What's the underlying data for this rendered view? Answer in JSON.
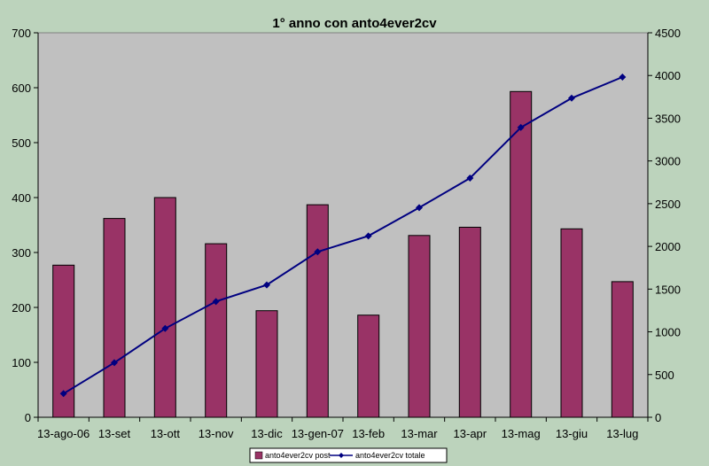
{
  "chart_data": {
    "type": "bar",
    "title": "1° anno con anto4ever2cv",
    "xlabel": "",
    "ylabel": "",
    "categories": [
      "13-ago-06",
      "13-set",
      "13-ott",
      "13-nov",
      "13-dic",
      "13-gen-07",
      "13-feb",
      "13-mar",
      "13-apr",
      "13-mag",
      "13-giu",
      "13-lug"
    ],
    "series": [
      {
        "name": "anto4ever2cv post",
        "type": "bar",
        "axis": "left",
        "color": "#993366",
        "values": [
          277,
          362,
          400,
          316,
          194,
          387,
          186,
          331,
          346,
          593,
          343,
          247
        ]
      },
      {
        "name": "anto4ever2cv totale",
        "type": "line",
        "axis": "right",
        "color": "#000080",
        "marker": "diamond",
        "values": [
          277,
          639,
          1039,
          1355,
          1549,
          1936,
          2122,
          2453,
          2799,
          3392,
          3735,
          3982
        ]
      }
    ],
    "ylim": [
      0,
      700
    ],
    "yticks": [
      0,
      100,
      200,
      300,
      400,
      500,
      600,
      700
    ],
    "y2lim": [
      0,
      4500
    ],
    "y2ticks": [
      0,
      500,
      1000,
      1500,
      2000,
      2500,
      3000,
      3500,
      4000,
      4500
    ],
    "grid": false,
    "legend": "bottom-center",
    "plot_background": "#c0c0c0",
    "chart_background": "#bcd3bc"
  }
}
